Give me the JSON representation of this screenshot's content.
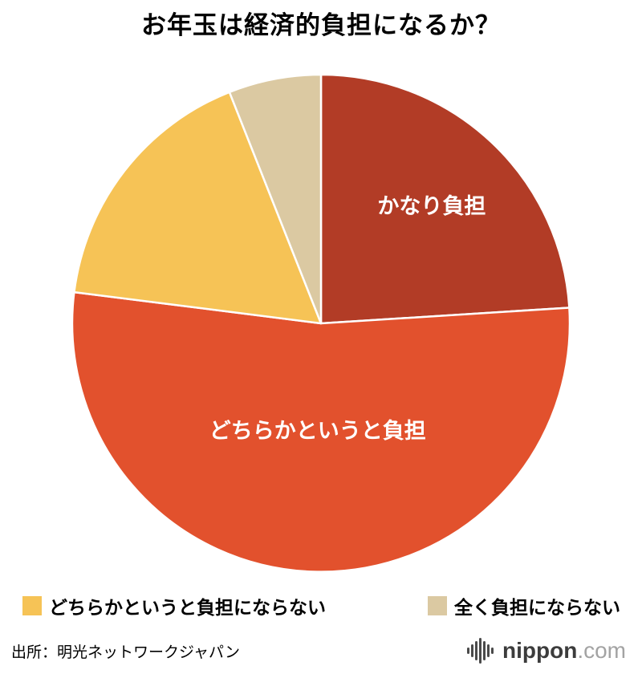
{
  "chart_data": {
    "type": "pie",
    "title": "お年玉は経済的負担になるか？",
    "unit": "%",
    "direction": "clockwise",
    "start_angle_deg": 0,
    "legend_position": "bottom",
    "slices": [
      {
        "label": "かなり負担",
        "value": 24,
        "color": "#b23c26",
        "label_radius": 0.65
      },
      {
        "label": "どちらかというと負担",
        "value": 53,
        "color": "#e2512d",
        "label_radius": 0.43
      },
      {
        "label": "どちらかというと負担にならない",
        "value": 17,
        "color": "#f6c356",
        "label_radius": null
      },
      {
        "label": "全く負担にならない",
        "value": 6,
        "color": "#dbc9a2",
        "label_radius": null
      }
    ]
  },
  "source": "出所：明光ネットワークジャパン",
  "logo": {
    "name": "nippon",
    "tld": ".com"
  }
}
